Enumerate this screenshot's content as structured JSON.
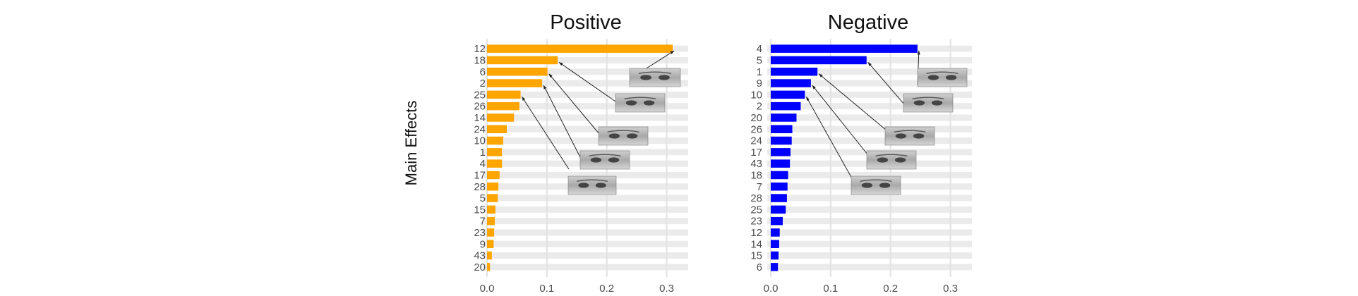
{
  "figure": {
    "ylabel": "Main Effects"
  },
  "chart_data": [
    {
      "type": "bar",
      "orientation": "horizontal",
      "title": "Positive",
      "xlabel": "",
      "ylabel": "Main Effects",
      "color": "#FFA500",
      "grid": true,
      "xlim": [
        0,
        0.33
      ],
      "xticks": [
        0.0,
        0.1,
        0.2,
        0.3
      ],
      "xtick_labels": [
        "0.0",
        "0.1",
        "0.2",
        "0.3"
      ],
      "categories": [
        "12",
        "18",
        "6",
        "2",
        "25",
        "26",
        "14",
        "24",
        "10",
        "1",
        "4",
        "17",
        "28",
        "5",
        "15",
        "7",
        "23",
        "9",
        "43",
        "20"
      ],
      "values": [
        0.31,
        0.118,
        0.101,
        0.092,
        0.056,
        0.054,
        0.045,
        0.033,
        0.027,
        0.025,
        0.025,
        0.021,
        0.019,
        0.018,
        0.014,
        0.013,
        0.012,
        0.011,
        0.008,
        0.005
      ],
      "annotations": [
        {
          "category": "12",
          "image": "face-image-mouth-smile"
        },
        {
          "category": "18",
          "image": "face-image-mouth-pursed"
        },
        {
          "category": "6",
          "image": "face-image-eyes"
        },
        {
          "category": "2",
          "image": "face-image-eyes-brows"
        },
        {
          "category": "25",
          "image": "face-image-mouth-lips"
        }
      ]
    },
    {
      "type": "bar",
      "orientation": "horizontal",
      "title": "Negative",
      "xlabel": "",
      "ylabel": "",
      "color": "#0000FF",
      "grid": true,
      "xlim": [
        0,
        0.33
      ],
      "xticks": [
        0.0,
        0.1,
        0.2,
        0.3
      ],
      "xtick_labels": [
        "0.0",
        "0.1",
        "0.2",
        "0.3"
      ],
      "categories": [
        "4",
        "5",
        "1",
        "9",
        "10",
        "2",
        "20",
        "26",
        "24",
        "17",
        "43",
        "18",
        "7",
        "28",
        "25",
        "23",
        "12",
        "14",
        "15",
        "6"
      ],
      "values": [
        0.245,
        0.16,
        0.078,
        0.067,
        0.057,
        0.05,
        0.043,
        0.036,
        0.035,
        0.033,
        0.032,
        0.029,
        0.028,
        0.027,
        0.025,
        0.02,
        0.015,
        0.014,
        0.013,
        0.012
      ],
      "annotations": [
        {
          "category": "4",
          "image": "face-image-brows-frown"
        },
        {
          "category": "5",
          "image": "face-image-eyes-wide"
        },
        {
          "category": "1",
          "image": "face-image-eyes-raised"
        },
        {
          "category": "9",
          "image": "face-image-nose-wrinkle"
        },
        {
          "category": "10",
          "image": "face-image-mouth-frown"
        }
      ]
    }
  ]
}
